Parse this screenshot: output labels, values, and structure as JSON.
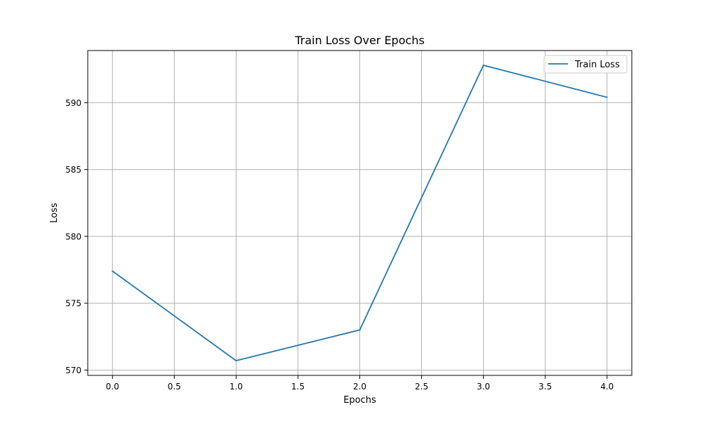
{
  "chart_data": {
    "type": "line",
    "title": "Train Loss Over Epochs",
    "xlabel": "Epochs",
    "ylabel": "Loss",
    "xlim": [
      -0.2,
      4.2
    ],
    "ylim": [
      569.6,
      593.9
    ],
    "xticks": [
      0.0,
      0.5,
      1.0,
      1.5,
      2.0,
      2.5,
      3.0,
      3.5,
      4.0
    ],
    "xtick_labels": [
      "0.0",
      "0.5",
      "1.0",
      "1.5",
      "2.0",
      "2.5",
      "3.0",
      "3.5",
      "4.0"
    ],
    "yticks": [
      570,
      575,
      580,
      585,
      590
    ],
    "ytick_labels": [
      "570",
      "575",
      "580",
      "585",
      "590"
    ],
    "grid": true,
    "legend_position": "top-right",
    "series": [
      {
        "name": "Train Loss",
        "color": "#1f77b4",
        "x": [
          0,
          1,
          2,
          3,
          4
        ],
        "values": [
          577.4,
          570.7,
          573.0,
          592.8,
          590.4
        ]
      }
    ]
  }
}
